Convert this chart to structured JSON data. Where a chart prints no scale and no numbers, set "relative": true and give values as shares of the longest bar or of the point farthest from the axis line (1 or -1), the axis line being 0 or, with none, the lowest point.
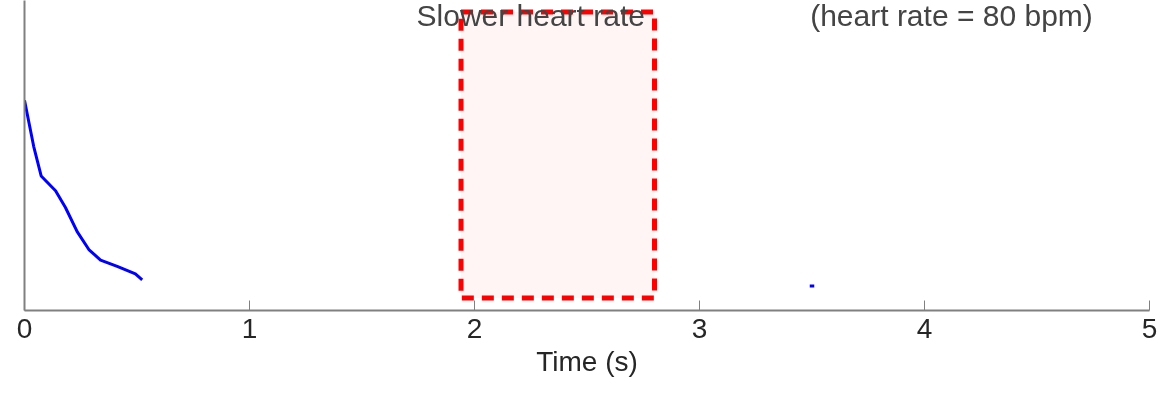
{
  "chart_data": {
    "type": "line",
    "title": "Slower heart rate",
    "subtitle": "(heart rate = 80 bpm)",
    "xlabel": "Time (s)",
    "relative": true,
    "xlim": [
      0,
      5
    ],
    "xticks": [
      0,
      1,
      2,
      3,
      4,
      5
    ],
    "grid": false,
    "marker": "none",
    "line_style": "solid",
    "series": [
      {
        "color": "#0000ff",
        "x": [
          0,
          0.041,
          0.074,
          0.138,
          0.182,
          0.234,
          0.286,
          0.338,
          0.412,
          0.493,
          0.523
        ],
        "values": [
          1.0,
          0.78,
          0.64,
          0.57,
          0.49,
          0.375,
          0.29,
          0.24,
          0.21,
          0.174,
          0.146
        ]
      },
      {
        "color": "#0000ff",
        "x": [
          3.49,
          3.51
        ],
        "values": [
          0.117,
          0.117
        ]
      }
    ],
    "bands": [
      {
        "axis": "x",
        "from": 1.94,
        "to": 2.8,
        "color": "#ff0000"
      }
    ]
  }
}
